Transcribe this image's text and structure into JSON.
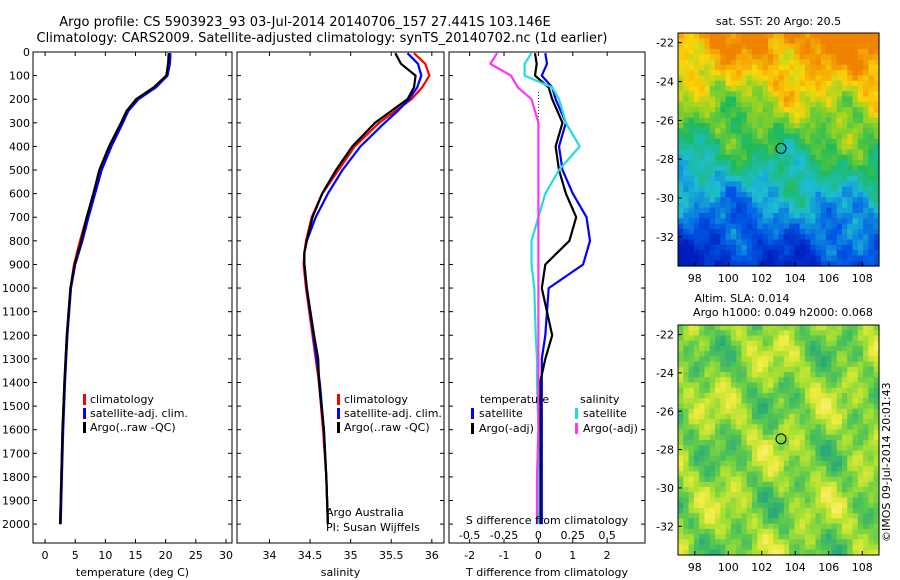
{
  "header": {
    "line1": "Argo profile: CS 5903923_93 03-Jul-2014 20140706_157 27.441S 103.146E",
    "line2": "Climatology: CARS2009. Satellite-adjusted climatology: synTS_20140702.nc (1d earlier)"
  },
  "colors": {
    "climatology": "#ff0000",
    "satellite": "#0000ff",
    "argo": "#000000",
    "satellite_salinity": "#22dddd",
    "argo_salinity_adj": "#ff33ff"
  },
  "depth_ticks": [
    "0",
    "100",
    "200",
    "300",
    "400",
    "500",
    "600",
    "700",
    "800",
    "900",
    "1000",
    "1100",
    "1200",
    "1300",
    "1400",
    "1500",
    "1600",
    "1700",
    "1800",
    "1900",
    "2000"
  ],
  "chart_data": [
    {
      "type": "line",
      "title": "",
      "xlabel": "temperature (deg C)",
      "ylabel": "depth",
      "xlim": [
        -2,
        31
      ],
      "ylim": [
        0,
        2080
      ],
      "xticks": [
        "0",
        "5",
        "10",
        "15",
        "20",
        "25",
        "30"
      ],
      "legend": [
        "climatology",
        "satellite-adj. clim.",
        "Argo(..raw -QC)"
      ],
      "depth": [
        5,
        50,
        100,
        150,
        200,
        250,
        300,
        400,
        500,
        600,
        700,
        800,
        900,
        1000,
        1200,
        1400,
        1600,
        1800,
        2000
      ],
      "series": [
        {
          "name": "climatology",
          "values": [
            20.6,
            20.5,
            20.2,
            18.3,
            15.3,
            13.6,
            12.7,
            10.8,
            9.2,
            8.1,
            6.9,
            5.8,
            4.8,
            4.2,
            3.6,
            3.2,
            2.9,
            2.7,
            2.5
          ]
        },
        {
          "name": "satellite-adj. clim.",
          "values": [
            20.8,
            20.7,
            20.3,
            18.4,
            15.5,
            13.8,
            12.9,
            11.0,
            9.4,
            8.3,
            7.2,
            6.2,
            5.0,
            4.3,
            3.7,
            3.3,
            3.0,
            2.8,
            2.6
          ]
        },
        {
          "name": "Argo(..raw -QC)",
          "values": [
            20.5,
            20.4,
            20.1,
            18.0,
            15.1,
            13.5,
            12.6,
            10.6,
            9.0,
            8.0,
            6.9,
            6.0,
            4.9,
            4.2,
            3.6,
            3.2,
            2.9,
            2.7,
            2.5
          ]
        }
      ]
    },
    {
      "type": "line",
      "title": "",
      "xlabel": "salinity",
      "ylabel": "depth",
      "xlim": [
        33.6,
        36.15
      ],
      "ylim": [
        0,
        2080
      ],
      "xticks": [
        "34",
        "34.5",
        "35",
        "35.5",
        "36"
      ],
      "legend": [
        "climatology",
        "satellite-adj. clim.",
        "Argo(..raw -QC)"
      ],
      "annotation": [
        "Argo Australia",
        "PI: Susan Wijffels"
      ],
      "depth": [
        5,
        50,
        100,
        150,
        200,
        250,
        300,
        400,
        500,
        600,
        700,
        800,
        850,
        900,
        1000,
        1200,
        1300,
        1400,
        1600,
        1800,
        2000
      ],
      "series": [
        {
          "name": "climatology",
          "values": [
            35.78,
            35.92,
            35.97,
            35.88,
            35.75,
            35.55,
            35.35,
            35.05,
            34.85,
            34.65,
            34.52,
            34.45,
            34.43,
            34.42,
            34.45,
            34.53,
            34.57,
            34.61,
            34.66,
            34.7,
            34.72
          ]
        },
        {
          "name": "satellite-adj. clim.",
          "values": [
            35.7,
            35.83,
            35.87,
            35.82,
            35.72,
            35.58,
            35.42,
            35.12,
            34.9,
            34.72,
            34.57,
            34.46,
            34.43,
            34.43,
            34.46,
            34.54,
            34.58,
            34.62,
            34.67,
            34.7,
            34.72
          ]
        },
        {
          "name": "Argo(..raw -QC)",
          "values": [
            35.55,
            35.62,
            35.8,
            35.78,
            35.7,
            35.5,
            35.3,
            35.02,
            34.82,
            34.65,
            34.53,
            34.46,
            34.43,
            34.43,
            34.46,
            34.55,
            34.6,
            34.61,
            34.67,
            34.7,
            34.72
          ]
        }
      ]
    },
    {
      "type": "line",
      "title": "",
      "xlabel": "T difference from climatology",
      "xlabel2": "S difference from climatology",
      "ylabel": "depth",
      "xlim": [
        -2.6,
        3.1
      ],
      "ylim": [
        0,
        2080
      ],
      "xticks": [
        "-2",
        "-1",
        "0",
        "1",
        "2"
      ],
      "xticks_top": [
        "-0.5",
        "-0.25",
        "0",
        "0.25",
        "0.5"
      ],
      "legend_titles": [
        "temperature",
        "salinity"
      ],
      "legend": [
        "satellite",
        "Argo(-adj)",
        "satellite",
        "Argo(-adj)"
      ],
      "depth": [
        5,
        50,
        100,
        150,
        200,
        300,
        400,
        500,
        600,
        700,
        800,
        900,
        1000,
        1200,
        1300,
        1400,
        1600,
        1800,
        2000
      ],
      "series": [
        {
          "name": "temperature satellite",
          "values": [
            0.2,
            0.25,
            0.1,
            0.4,
            0.5,
            0.8,
            0.6,
            0.7,
            1.0,
            1.4,
            1.5,
            1.3,
            0.3,
            0.2,
            0.1,
            0.1,
            0.1,
            0.1,
            0.1
          ]
        },
        {
          "name": "temperature Argo(-adj)",
          "values": [
            -0.1,
            -0.05,
            -0.1,
            0.3,
            0.4,
            0.7,
            0.5,
            0.6,
            0.8,
            1.1,
            0.9,
            0.2,
            0.1,
            0.4,
            0.2,
            0.05,
            0.05,
            0.05,
            0.05
          ]
        },
        {
          "name": "salinity satellite",
          "values": [
            -0.05,
            -0.1,
            -0.1,
            0.1,
            0.15,
            0.2,
            0.3,
            0.15,
            0.05,
            0.0,
            -0.05,
            -0.05,
            -0.03,
            -0.02,
            -0.01,
            -0.01,
            0.0,
            0.0,
            0.0
          ]
        },
        {
          "name": "salinity Argo(-adj)",
          "values": [
            -0.3,
            -0.35,
            -0.2,
            -0.15,
            -0.05,
            0.0,
            0.0,
            0.0,
            0.0,
            0.0,
            0.0,
            0.0,
            0.0,
            0.0,
            0.0,
            0.0,
            0.0,
            -0.01,
            -0.01
          ]
        }
      ]
    },
    {
      "type": "heatmap",
      "title": "sat. SST: 20 Argo: 20.5",
      "xlim": [
        97,
        109
      ],
      "ylim": [
        -33.5,
        -21.5
      ],
      "xticks": [
        "98",
        "100",
        "102",
        "104",
        "106",
        "108"
      ],
      "yticks": [
        "-22",
        "-24",
        "-26",
        "-28",
        "-30",
        "-32"
      ],
      "marker": {
        "lon": 103.15,
        "lat": -27.44
      }
    },
    {
      "type": "heatmap",
      "title": "Altim. SLA: 0.014",
      "subtitle": "Argo h1000: 0.049 h2000: 0.068",
      "xlim": [
        97,
        109
      ],
      "ylim": [
        -33.5,
        -21.5
      ],
      "xticks": [
        "98",
        "100",
        "102",
        "104",
        "106",
        "108"
      ],
      "yticks": [
        "-22",
        "-24",
        "-26",
        "-28",
        "-30",
        "-32"
      ],
      "marker": {
        "lon": 103.15,
        "lat": -27.44
      }
    }
  ],
  "footer": {
    "credit": "©IMOS 09-Jul-2014 20:01:43"
  }
}
